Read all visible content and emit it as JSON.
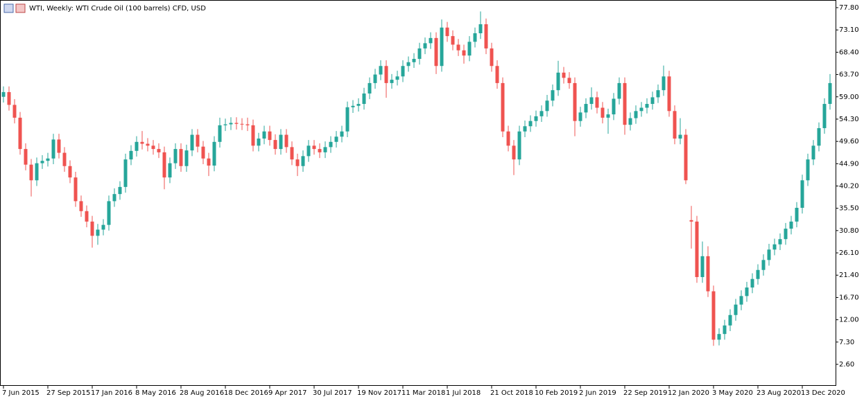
{
  "chart_data": {
    "type": "candlestick",
    "title": "WTI, Weekly:  WTI Crude Oil (100 barrels) CFD, USD",
    "up_color": "#26a69a",
    "down_color": "#ef5350",
    "ylim": [
      -1.93,
      79.41
    ],
    "yticks": [
      {
        "value": 2.6,
        "label": "2.60"
      },
      {
        "value": 7.3,
        "label": "7.30"
      },
      {
        "value": 12,
        "label": "12.00"
      },
      {
        "value": 16.7,
        "label": "16.70"
      },
      {
        "value": 21.4,
        "label": "21.40"
      },
      {
        "value": 26.1,
        "label": "26.10"
      },
      {
        "value": 30.8,
        "label": "30.80"
      },
      {
        "value": 35.5,
        "label": "35.50"
      },
      {
        "value": 40.2,
        "label": "40.20"
      },
      {
        "value": 44.9,
        "label": "44.90"
      },
      {
        "value": 49.6,
        "label": "49.60"
      },
      {
        "value": 54.3,
        "label": "54.30"
      },
      {
        "value": 59,
        "label": "59.00"
      },
      {
        "value": 63.7,
        "label": "63.70"
      },
      {
        "value": 68.4,
        "label": "68.40"
      },
      {
        "value": 73.1,
        "label": "73.10"
      },
      {
        "value": 77.8,
        "label": "77.80"
      }
    ],
    "categories": [
      "7 Jun 2015",
      null,
      null,
      null,
      null,
      null,
      null,
      null,
      "27 Sep 2015",
      null,
      null,
      null,
      null,
      null,
      null,
      null,
      "17 Jan 2016",
      null,
      null,
      null,
      null,
      null,
      null,
      null,
      "8 May 2016",
      null,
      null,
      null,
      null,
      null,
      null,
      null,
      "28 Aug 2016",
      null,
      null,
      null,
      null,
      null,
      null,
      null,
      "18 Dec 2016",
      null,
      null,
      null,
      null,
      null,
      null,
      null,
      "9 Apr 2017",
      null,
      null,
      null,
      null,
      null,
      null,
      null,
      "30 Jul 2017",
      null,
      null,
      null,
      null,
      null,
      null,
      null,
      "19 Nov 2017",
      null,
      null,
      null,
      null,
      null,
      null,
      null,
      "11 Mar 2018",
      null,
      null,
      null,
      null,
      null,
      null,
      null,
      "1 Jul 2018",
      null,
      null,
      null,
      null,
      null,
      null,
      null,
      "21 Oct 2018",
      null,
      null,
      null,
      null,
      null,
      null,
      null,
      "10 Feb 2019",
      null,
      null,
      null,
      null,
      null,
      null,
      null,
      "2 Jun 2019",
      null,
      null,
      null,
      null,
      null,
      null,
      null,
      "22 Sep 2019",
      null,
      null,
      null,
      null,
      null,
      null,
      null,
      "12 Jan 2020",
      null,
      null,
      null,
      null,
      null,
      null,
      null,
      "3 May 2020",
      null,
      null,
      null,
      null,
      null,
      null,
      null,
      "23 Aug 2020",
      null,
      null,
      null,
      null,
      null,
      null,
      null,
      "13 Dec 2020",
      null,
      null,
      null,
      null,
      null
    ],
    "ohlc": [
      [
        59.0,
        61.2,
        57.8,
        60.0
      ],
      [
        60.0,
        61.2,
        56.1,
        57.3
      ],
      [
        57.3,
        58.5,
        53.4,
        54.6
      ],
      [
        54.6,
        55.8,
        46.8,
        48.0
      ],
      [
        48.0,
        49.2,
        43.5,
        44.7
      ],
      [
        44.7,
        45.9,
        38.0,
        41.4
      ],
      [
        41.4,
        46.2,
        40.2,
        45.0
      ],
      [
        45.0,
        46.7,
        43.8,
        45.5
      ],
      [
        45.5,
        47.2,
        44.3,
        46.0
      ],
      [
        46.0,
        51.2,
        44.8,
        50.0
      ],
      [
        50.0,
        51.2,
        46.0,
        47.2
      ],
      [
        47.2,
        48.4,
        43.2,
        44.4
      ],
      [
        44.4,
        45.6,
        40.8,
        42.0
      ],
      [
        42.0,
        43.2,
        35.8,
        37.0
      ],
      [
        37.0,
        38.2,
        33.7,
        34.9
      ],
      [
        34.9,
        36.1,
        31.5,
        32.7
      ],
      [
        32.7,
        33.9,
        27.2,
        29.7
      ],
      [
        29.7,
        32.2,
        27.8,
        31.0
      ],
      [
        31.0,
        33.2,
        29.8,
        32.0
      ],
      [
        32.0,
        38.2,
        30.8,
        37.0
      ],
      [
        37.0,
        39.7,
        35.8,
        38.5
      ],
      [
        38.5,
        41.2,
        37.3,
        40.0
      ],
      [
        40.0,
        47.0,
        38.8,
        45.8
      ],
      [
        45.8,
        48.8,
        44.6,
        47.6
      ],
      [
        47.6,
        50.7,
        46.4,
        49.5
      ],
      [
        49.5,
        51.8,
        47.9,
        49.1
      ],
      [
        49.1,
        50.3,
        47.5,
        48.7
      ],
      [
        48.7,
        49.9,
        46.8,
        48.0
      ],
      [
        48.0,
        49.2,
        46.1,
        47.3
      ],
      [
        47.3,
        48.5,
        39.5,
        42.0
      ],
      [
        42.0,
        46.2,
        40.8,
        45.0
      ],
      [
        45.0,
        49.2,
        43.8,
        48.0
      ],
      [
        48.0,
        49.2,
        43.2,
        44.4
      ],
      [
        44.4,
        48.9,
        43.2,
        47.7
      ],
      [
        47.7,
        52.2,
        46.5,
        51.0
      ],
      [
        51.0,
        52.2,
        47.3,
        48.5
      ],
      [
        48.5,
        49.7,
        44.8,
        46.0
      ],
      [
        46.0,
        47.2,
        42.3,
        44.5
      ],
      [
        44.5,
        50.7,
        43.3,
        49.5
      ],
      [
        49.5,
        54.6,
        48.3,
        53.0
      ],
      [
        53.0,
        54.4,
        51.8,
        53.2
      ],
      [
        53.2,
        54.7,
        52.0,
        53.5
      ],
      [
        53.5,
        54.7,
        52.1,
        53.3
      ],
      [
        53.3,
        54.5,
        52.0,
        53.2
      ],
      [
        53.2,
        54.6,
        51.8,
        53.0
      ],
      [
        53.0,
        54.2,
        47.5,
        48.7
      ],
      [
        48.7,
        51.4,
        47.5,
        50.2
      ],
      [
        50.2,
        52.9,
        49.0,
        51.7
      ],
      [
        51.7,
        52.9,
        48.7,
        49.9
      ],
      [
        49.9,
        51.1,
        46.8,
        48.0
      ],
      [
        48.0,
        52.2,
        46.8,
        51.0
      ],
      [
        51.0,
        52.2,
        47.2,
        48.4
      ],
      [
        48.4,
        49.6,
        44.6,
        45.8
      ],
      [
        45.8,
        47.0,
        42.3,
        44.4
      ],
      [
        44.4,
        47.7,
        43.2,
        46.5
      ],
      [
        46.5,
        49.9,
        45.3,
        48.7
      ],
      [
        48.7,
        49.9,
        46.8,
        48.0
      ],
      [
        48.0,
        49.2,
        46.1,
        47.3
      ],
      [
        47.3,
        49.6,
        46.1,
        48.4
      ],
      [
        48.4,
        50.7,
        47.2,
        49.5
      ],
      [
        49.5,
        51.8,
        48.3,
        50.6
      ],
      [
        50.6,
        52.9,
        49.4,
        51.7
      ],
      [
        51.7,
        58.0,
        50.5,
        56.8
      ],
      [
        56.8,
        58.3,
        55.6,
        57.1
      ],
      [
        57.1,
        58.7,
        55.9,
        57.5
      ],
      [
        57.5,
        60.9,
        56.3,
        59.7
      ],
      [
        59.7,
        63.1,
        58.5,
        61.9
      ],
      [
        61.9,
        64.9,
        60.7,
        63.7
      ],
      [
        63.7,
        66.7,
        62.5,
        65.5
      ],
      [
        65.5,
        66.7,
        58.8,
        61.9
      ],
      [
        61.9,
        63.8,
        60.7,
        62.6
      ],
      [
        62.6,
        64.5,
        61.4,
        63.3
      ],
      [
        63.3,
        66.7,
        62.1,
        65.5
      ],
      [
        65.5,
        67.5,
        64.3,
        66.3
      ],
      [
        66.3,
        68.2,
        65.1,
        67.0
      ],
      [
        67.0,
        70.4,
        65.8,
        69.2
      ],
      [
        69.2,
        71.5,
        68.0,
        70.3
      ],
      [
        70.3,
        72.6,
        69.1,
        71.4
      ],
      [
        71.4,
        72.6,
        63.8,
        65.5
      ],
      [
        65.5,
        75.3,
        64.3,
        73.6
      ],
      [
        73.6,
        74.8,
        70.6,
        71.8
      ],
      [
        71.8,
        73.0,
        68.8,
        70.0
      ],
      [
        70.0,
        71.2,
        67.6,
        68.8
      ],
      [
        68.8,
        70.0,
        66.0,
        67.7
      ],
      [
        67.7,
        71.8,
        66.5,
        70.6
      ],
      [
        70.6,
        73.6,
        69.4,
        72.4
      ],
      [
        72.4,
        77.0,
        71.2,
        74.3
      ],
      [
        74.3,
        75.5,
        68.0,
        69.2
      ],
      [
        69.2,
        70.4,
        64.3,
        65.5
      ],
      [
        65.5,
        66.7,
        60.7,
        61.9
      ],
      [
        61.9,
        63.1,
        50.5,
        51.7
      ],
      [
        51.7,
        52.9,
        47.5,
        48.7
      ],
      [
        48.7,
        49.9,
        42.5,
        45.8
      ],
      [
        45.8,
        52.9,
        44.6,
        51.7
      ],
      [
        51.7,
        54.0,
        50.5,
        52.8
      ],
      [
        52.8,
        55.1,
        51.6,
        53.9
      ],
      [
        53.9,
        56.1,
        52.7,
        54.9
      ],
      [
        54.9,
        57.2,
        53.7,
        56.0
      ],
      [
        56.0,
        59.4,
        54.8,
        58.2
      ],
      [
        58.2,
        61.6,
        57.0,
        60.4
      ],
      [
        60.4,
        66.6,
        59.2,
        64.1
      ],
      [
        64.1,
        65.3,
        61.8,
        63.0
      ],
      [
        63.0,
        64.2,
        60.7,
        61.9
      ],
      [
        61.9,
        63.1,
        50.7,
        53.9
      ],
      [
        53.9,
        56.9,
        52.7,
        55.7
      ],
      [
        55.7,
        58.7,
        54.5,
        57.5
      ],
      [
        57.5,
        61.0,
        56.3,
        58.9
      ],
      [
        58.9,
        60.1,
        55.5,
        56.7
      ],
      [
        56.7,
        57.9,
        53.4,
        54.6
      ],
      [
        54.6,
        56.5,
        51.2,
        55.3
      ],
      [
        55.3,
        59.8,
        54.1,
        58.6
      ],
      [
        58.6,
        63.1,
        57.4,
        61.9
      ],
      [
        61.9,
        63.1,
        51.0,
        53.1
      ],
      [
        53.1,
        55.7,
        51.9,
        54.5
      ],
      [
        54.5,
        57.2,
        53.3,
        56.0
      ],
      [
        56.0,
        57.9,
        54.8,
        56.7
      ],
      [
        56.7,
        58.7,
        55.5,
        57.5
      ],
      [
        57.5,
        60.1,
        56.3,
        58.9
      ],
      [
        58.9,
        61.6,
        57.7,
        60.4
      ],
      [
        60.4,
        65.6,
        59.2,
        63.3
      ],
      [
        63.3,
        64.5,
        54.8,
        56.0
      ],
      [
        56.0,
        57.2,
        49.0,
        50.2
      ],
      [
        50.2,
        54.5,
        49.0,
        51.0
      ],
      [
        51.0,
        52.2,
        40.6,
        41.4
      ],
      [
        33.0,
        36.0,
        27.0,
        32.7
      ],
      [
        32.7,
        33.9,
        19.8,
        21.0
      ],
      [
        21.0,
        28.5,
        19.8,
        25.4
      ],
      [
        25.4,
        27.5,
        16.8,
        18.0
      ],
      [
        18.0,
        19.2,
        6.5,
        7.8
      ],
      [
        7.8,
        10.2,
        6.6,
        9.0
      ],
      [
        9.0,
        12.0,
        7.8,
        10.8
      ],
      [
        10.8,
        14.2,
        9.6,
        13.0
      ],
      [
        13.0,
        16.4,
        11.8,
        15.2
      ],
      [
        15.2,
        18.2,
        14.0,
        17.0
      ],
      [
        17.0,
        20.0,
        15.8,
        18.8
      ],
      [
        18.8,
        21.8,
        17.6,
        20.6
      ],
      [
        20.6,
        23.7,
        19.4,
        22.5
      ],
      [
        22.5,
        25.8,
        21.3,
        24.6
      ],
      [
        24.6,
        28.0,
        23.4,
        26.8
      ],
      [
        26.8,
        29.1,
        25.6,
        27.9
      ],
      [
        27.9,
        30.2,
        26.7,
        29.0
      ],
      [
        29.0,
        32.4,
        27.8,
        31.2
      ],
      [
        31.2,
        33.9,
        30.0,
        32.7
      ],
      [
        32.7,
        36.8,
        31.5,
        35.6
      ],
      [
        35.6,
        42.6,
        34.4,
        41.4
      ],
      [
        41.4,
        47.0,
        40.2,
        45.8
      ],
      [
        45.8,
        49.9,
        44.6,
        48.7
      ],
      [
        48.7,
        53.6,
        47.5,
        52.4
      ],
      [
        52.4,
        58.7,
        51.2,
        57.5
      ],
      [
        57.5,
        63.8,
        56.3,
        61.9
      ]
    ]
  }
}
